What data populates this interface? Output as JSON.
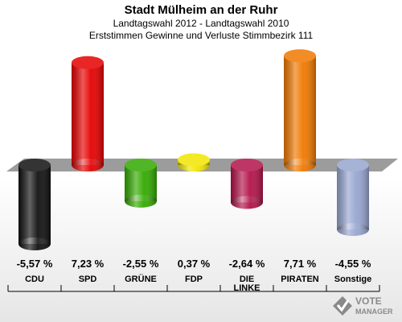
{
  "header": {
    "title": "Stadt Mülheim an der Ruhr",
    "subtitle1": "Landtagswahl 2012 - Landtagswahl 2010",
    "subtitle2": "Erststimmen Gewinne und Verluste Stimmbezirk 111"
  },
  "chart_data": {
    "type": "bar",
    "title": "Stadt Mülheim an der Ruhr",
    "subtitle": "Landtagswahl 2012 - Landtagswahl 2010 / Erststimmen Gewinne und Verluste Stimmbezirk 111",
    "categories": [
      "CDU",
      "SPD",
      "GRÜNE",
      "FDP",
      "DIE LINKE",
      "PIRATEN",
      "Sonstige"
    ],
    "values": [
      -5.57,
      7.23,
      -2.55,
      0.37,
      -2.64,
      7.71,
      -4.55
    ],
    "value_labels": [
      "-5,57 %",
      "7,23 %",
      "-2,55 %",
      "0,37 %",
      "-2,64 %",
      "7,71 %",
      "-4,55 %"
    ],
    "colors": [
      "#111111",
      "#e60000",
      "#33aa00",
      "#f2e600",
      "#b3134a",
      "#f07800",
      "#97a5cf"
    ],
    "ylim": [
      -5.57,
      7.71
    ],
    "grid": false,
    "legend": "none"
  },
  "logo": {
    "line1": "VOTE",
    "line2": "MANAGER"
  }
}
